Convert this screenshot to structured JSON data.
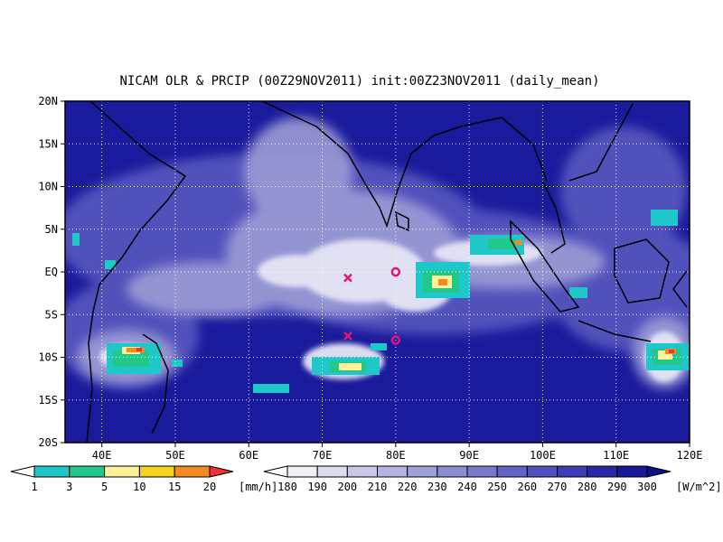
{
  "map": {
    "title": "NICAM OLR & PRCIP (00Z29NOV2011) init:00Z23NOV2011 (daily_mean)",
    "lon_range": [
      35,
      120
    ],
    "lat_range": [
      -20,
      20
    ],
    "lon_ticks": [
      "40E",
      "50E",
      "60E",
      "70E",
      "80E",
      "90E",
      "100E",
      "110E",
      "120E"
    ],
    "lat_ticks": [
      "20N",
      "15N",
      "10N",
      "5N",
      "EQ",
      "5S",
      "10S",
      "15S",
      "20S"
    ],
    "grid": true,
    "markers": [
      {
        "type": "x",
        "lon": 73.5,
        "lat": -0.7,
        "color": "#e0157a"
      },
      {
        "type": "x",
        "lon": 73.5,
        "lat": -7.5,
        "color": "#e0157a"
      },
      {
        "type": "o",
        "lon": 80,
        "lat": 0,
        "color": "#e0157a"
      },
      {
        "type": "o",
        "lon": 80,
        "lat": -8,
        "color": "#e0157a"
      }
    ]
  },
  "precip_scale": {
    "unit": "[mm/h]",
    "labels": [
      "1",
      "3",
      "5",
      "10",
      "15",
      "20"
    ],
    "colors": [
      "#ffffff",
      "#1ec8c8",
      "#22c88a",
      "#fff09a",
      "#f4d21e",
      "#f48a22",
      "#f03232"
    ]
  },
  "olr_scale": {
    "unit": "[W/m^2]",
    "labels": [
      "180",
      "190",
      "200",
      "210",
      "220",
      "230",
      "240",
      "250",
      "260",
      "270",
      "280",
      "290",
      "300"
    ],
    "colors": [
      "#ffffff",
      "#f0f0f8",
      "#dcdcf0",
      "#c8c8e8",
      "#b4b4e0",
      "#a0a0d8",
      "#8c8cd2",
      "#7878cc",
      "#6464c6",
      "#5050be",
      "#3c3cb4",
      "#2828a6",
      "#18189a",
      "#0e0e86"
    ]
  }
}
